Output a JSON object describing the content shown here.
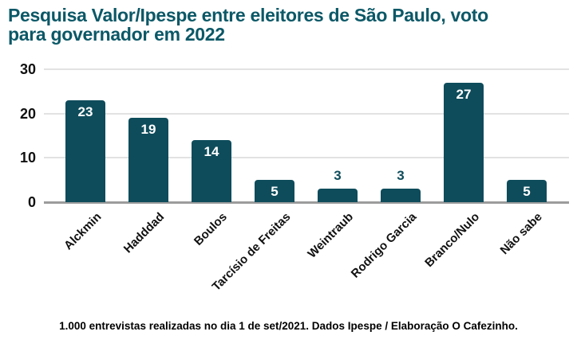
{
  "page": {
    "background": "#ffffff"
  },
  "title": {
    "text": "Pesquisa Valor/Ipespe entre eleitores de São Paulo, voto para governador em 2022",
    "lines": [
      "Pesquisa Valor/Ipespe entre eleitores de São Paulo, voto",
      "para governador em 2022"
    ],
    "color": "#0b5867"
  },
  "chart_data": {
    "type": "bar",
    "title": "Pesquisa Valor/Ipespe entre eleitores de São Paulo, voto para governador em 2022",
    "categories": [
      "Alckmin",
      "Hadddad",
      "Boulos",
      "Tarcísio de Freitas",
      "Weintraub",
      "Rodrigo Garcia",
      "Branco/Nulo",
      "Não sabe"
    ],
    "values": [
      23,
      19,
      14,
      5,
      3,
      3,
      27,
      5
    ],
    "value_labels": [
      "23",
      "19",
      "14",
      "5",
      "3",
      "3",
      "27",
      "5"
    ],
    "xlabel": "",
    "ylabel": "",
    "ylim": [
      0,
      30
    ],
    "yticks": [
      0,
      10,
      20,
      30
    ],
    "ytick_labels": [
      "0",
      "10",
      "20",
      "30"
    ],
    "grid": "horizontal-only",
    "legend": "none",
    "bar_color": "#0e4c5b",
    "value_label_inside_color": "#ffffff",
    "value_label_outside_color": "#0e4c5b",
    "value_label_inside_threshold": 5
  },
  "footer": {
    "text": "1.000 entrevistas realizadas no dia 1 de set/2021. Dados Ipespe / Elaboração O Cafezinho."
  }
}
